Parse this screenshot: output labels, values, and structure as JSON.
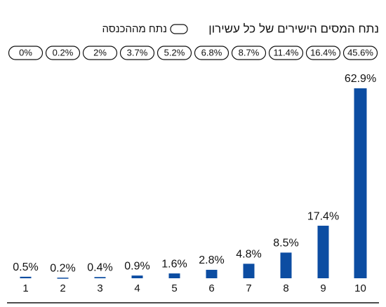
{
  "chart_data": {
    "type": "bar",
    "categories": [
      "1",
      "2",
      "3",
      "4",
      "5",
      "6",
      "7",
      "8",
      "9",
      "10"
    ],
    "series": [
      {
        "name": "נתח המסים הישירים של כל עשירון",
        "color": "#0c4da2",
        "values": [
          0.5,
          0.2,
          0.4,
          0.9,
          1.6,
          2.8,
          4.8,
          8.5,
          17.4,
          62.9
        ],
        "value_labels": [
          "0.5%",
          "0.2%",
          "0.4%",
          "0.9%",
          "1.6%",
          "2.8%",
          "4.8%",
          "8.5%",
          "17.4%",
          "62.9%"
        ]
      },
      {
        "name": "נתח מההכנסה",
        "values": [
          0,
          0.2,
          2,
          3.7,
          5.2,
          6.8,
          8.7,
          11.4,
          16.4,
          45.6
        ],
        "value_labels": [
          "0%",
          "0.2%",
          "2%",
          "3.7%",
          "5.2%",
          "6.8%",
          "8.7%",
          "11.4%",
          "16.4%",
          "45.6%"
        ]
      }
    ]
  }
}
